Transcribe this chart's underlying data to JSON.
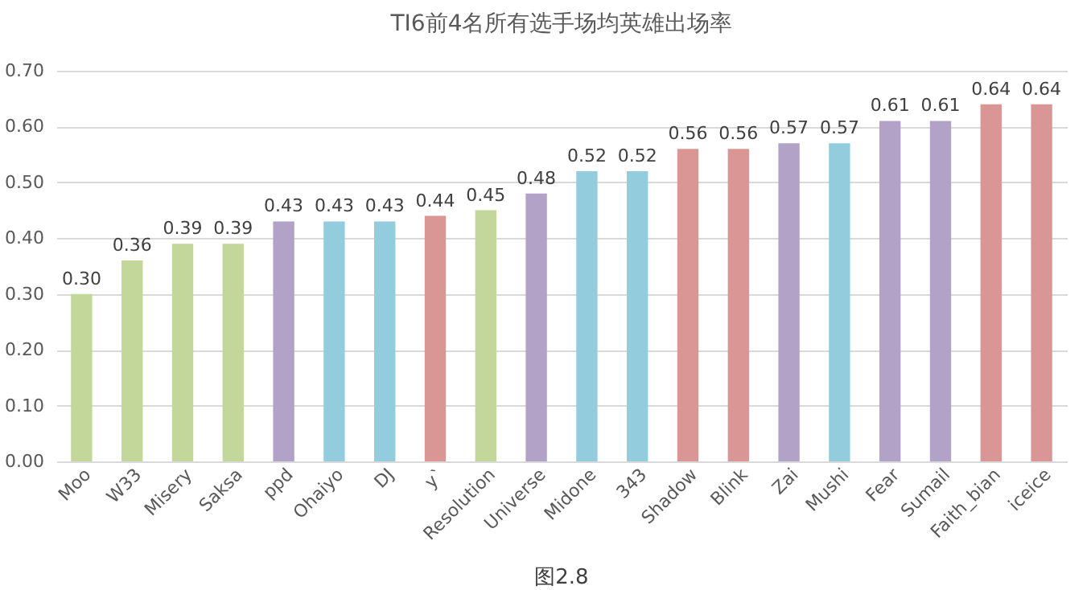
{
  "chart_data": {
    "type": "bar",
    "title": "TI6前4名所有选手场均英雄出场率",
    "categories": [
      "Moo",
      "W33",
      "Misery",
      "Saksa",
      "ppd",
      "Ohaiyo",
      "DJ",
      "y`",
      "Resolution",
      "Universe",
      "Midone",
      "343",
      "Shadow",
      "Blink",
      "Zai",
      "Mushi",
      "Fear",
      "Sumail",
      "Faith_bian",
      "iceice"
    ],
    "values": [
      0.3,
      0.36,
      0.39,
      0.39,
      0.43,
      0.43,
      0.43,
      0.44,
      0.45,
      0.48,
      0.52,
      0.52,
      0.56,
      0.56,
      0.57,
      0.57,
      0.61,
      0.61,
      0.64,
      0.64
    ],
    "colors": [
      "#c4d79b",
      "#c4d79b",
      "#c4d79b",
      "#c4d79b",
      "#b3a2c7",
      "#93cddd",
      "#93cddd",
      "#d99694",
      "#c4d79b",
      "#b3a2c7",
      "#93cddd",
      "#93cddd",
      "#d99694",
      "#d99694",
      "#b3a2c7",
      "#93cddd",
      "#b3a2c7",
      "#b3a2c7",
      "#d99694",
      "#d99694"
    ],
    "ylim": [
      0,
      0.7
    ],
    "yticks": [
      {
        "value": 0,
        "label": "0.00"
      },
      {
        "value": 0.1,
        "label": "0.10"
      },
      {
        "value": 0.2,
        "label": "0.20"
      },
      {
        "value": 0.3,
        "label": "0.30"
      },
      {
        "value": 0.4,
        "label": "0.40"
      },
      {
        "value": 0.5,
        "label": "0.50"
      },
      {
        "value": 0.6,
        "label": "0.60"
      },
      {
        "value": 0.7,
        "label": "0.70"
      }
    ],
    "grid": "y",
    "value_labels": [
      "0.30",
      "0.36",
      "0.39",
      "0.39",
      "0.43",
      "0.43",
      "0.43",
      "0.44",
      "0.45",
      "0.48",
      "0.52",
      "0.52",
      "0.56",
      "0.56",
      "0.57",
      "0.57",
      "0.61",
      "0.61",
      "0.64",
      "0.64"
    ],
    "annotations": [
      "图2.8"
    ]
  }
}
